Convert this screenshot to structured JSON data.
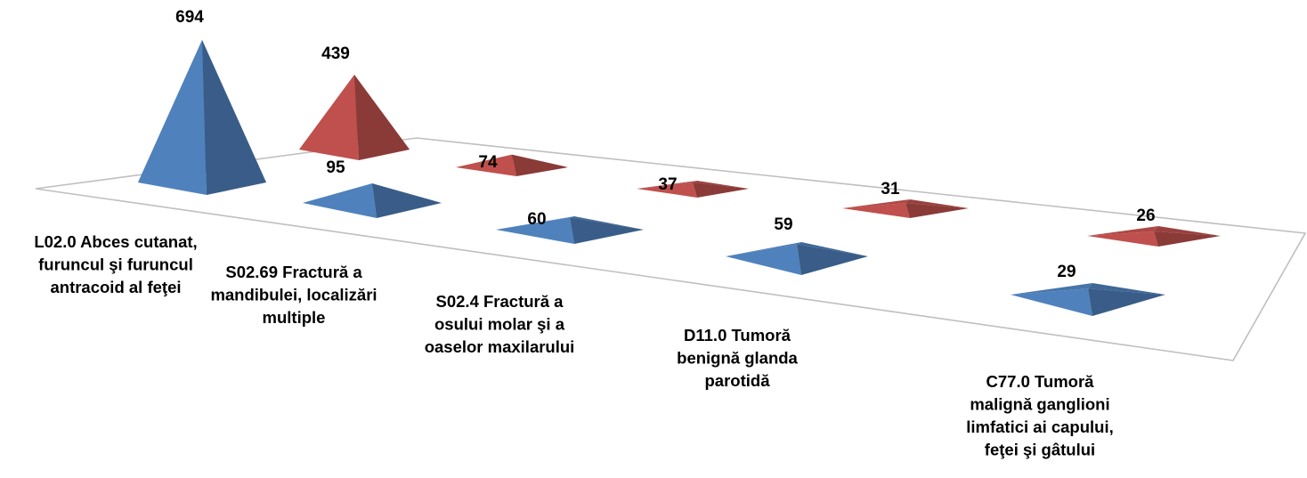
{
  "chart_data": {
    "type": "bar",
    "shape": "3d-pyramid",
    "categories": [
      "L02.0 Abces cutanat, furuncul şi furuncul antracoid al feţei",
      "S02.69 Fractură a mandibulei, localizări multiple",
      "S02.4 Fractură a osului molar şi a oaselor maxilarului",
      "D11.0 Tumoră benignă glanda parotidă",
      "C77.0 Tumoră malignă ganglioni limfatici ai capului, feţei şi gâtului"
    ],
    "category_lines": [
      [
        "L02.0 Abces cutanat,",
        "furuncul şi furuncul",
        "antracoid al feţei"
      ],
      [
        "S02.69 Fractură a",
        "mandibulei, localizări",
        "multiple"
      ],
      [
        "S02.4 Fractură a",
        "osului molar şi a",
        "oaselor maxilarului"
      ],
      [
        "D11.0 Tumoră",
        "benignă glanda",
        "parotidă"
      ],
      [
        "C77.0 Tumoră",
        "malignă ganglioni",
        "limfatici ai capului,",
        "feţei şi gâtului"
      ]
    ],
    "series": [
      {
        "color": "#4f81bd",
        "values": [
          694,
          95,
          60,
          59,
          29
        ]
      },
      {
        "color": "#c0504d",
        "values": [
          439,
          74,
          37,
          31,
          26
        ]
      }
    ],
    "data_labels": true,
    "legend": "none",
    "title": "",
    "xlabel": "",
    "ylabel": ""
  }
}
